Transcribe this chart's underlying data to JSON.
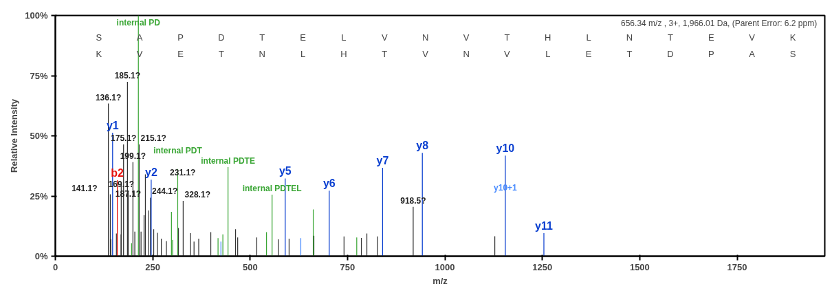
{
  "chart_data": {
    "type": "bar",
    "xlabel": "m/z",
    "ylabel": "Relative Intensity",
    "xlim": [
      0,
      1975
    ],
    "xticks": [
      0,
      250,
      500,
      750,
      1000,
      1250,
      1500,
      1750
    ],
    "ylim": [
      0,
      100
    ],
    "yticks": [
      {
        "value": 0,
        "label": "0%"
      },
      {
        "value": 25,
        "label": "25%"
      },
      {
        "value": 50,
        "label": "50%"
      },
      {
        "value": 75,
        "label": "75%"
      },
      {
        "value": 100,
        "label": "100%"
      }
    ],
    "grid": false,
    "annotations": [
      "656.34 m/z , 3+, 1,966.01 Da,  (Parent Error: 6.2 ppm)",
      "S A P D T E L V N V T H L N T E V K",
      "K V E T N L H T V N V L E T D P A S",
      {
        "text": "y10+1",
        "x": 1155,
        "y": 26
      },
      {
        "text": "136.1?",
        "x": 136.1,
        "y": 63.4
      },
      {
        "text": "141.1?",
        "x": 141.1,
        "y": 25.7
      },
      {
        "text": "169.1?",
        "x": 169.1,
        "y": 30
      },
      {
        "text": "175.1?",
        "x": 175.1,
        "y": 46.4
      },
      {
        "text": "185.1?",
        "x": 185.1,
        "y": 72.4
      },
      {
        "text": "187.1?",
        "x": 187.1,
        "y": 26.6
      },
      {
        "text": "199.1?",
        "x": 199.1,
        "y": 39.1
      },
      {
        "text": "215.1?",
        "x": 215.1,
        "y": 46.4
      },
      {
        "text": "231.1?",
        "x": 231.1,
        "y": 34
      },
      {
        "text": "244.1?",
        "x": 244.1,
        "y": 24.3
      },
      {
        "text": "328.1?",
        "x": 328.1,
        "y": 23
      },
      {
        "text": "918.5?",
        "x": 918.5,
        "y": 20.5
      }
    ],
    "series": [
      {
        "color": "#333333",
        "x": [
          136.1,
          141.1,
          142.5,
          156.7,
          168.6,
          169.1,
          174.4,
          175.1,
          185.1,
          187.1,
          199.1,
          204,
          215.1,
          220,
          227.7,
          231.1,
          239.5,
          244.1,
          252.5,
          262,
          272,
          285,
          316,
          328.1,
          347,
          356,
          368,
          399,
          462.5,
          468,
          517,
          572.5,
          600,
          663.6,
          741,
          785.5,
          799.6,
          827,
          918.5,
          1128
        ],
        "values": [
          63.4,
          25.7,
          7.1,
          9.4,
          9.1,
          30,
          null,
          46.4,
          72.4,
          26.6,
          39.1,
          10.2,
          46.4,
          10.2,
          17,
          34,
          19,
          24.3,
          11.2,
          9.7,
          7.3,
          6.3,
          11.7,
          23,
          9.6,
          6.1,
          7.3,
          10,
          11.2,
          7.8,
          7.8,
          7,
          7.3,
          8.5,
          8.2,
          7.6,
          9.4,
          8.2,
          20.5,
          8.3
        ]
      },
      {
        "color": "#0a3fd0",
        "x": [
          147,
          246,
          590,
          703,
          840,
          942,
          1155,
          1254
        ],
        "values": [
          51.3,
          31.8,
          32.3,
          27.2,
          36.7,
          42.9,
          41.8,
          9.6
        ],
        "value_labels": [
          "y1",
          "y2",
          "y5",
          "y6",
          "y7",
          "y8",
          "y10",
          "y11"
        ]
      },
      {
        "color": "#e8120c",
        "x": [
          159
        ],
        "values": [
          31.6
        ],
        "value_labels": [
          "b2"
        ]
      },
      {
        "color": "#3aa635",
        "x": [
          195.7,
          213.1,
          298,
          301,
          314.1,
          417.6,
          430,
          443.2,
          542,
          556.3,
          662,
          773.6
        ],
        "values": [
          5.4,
          100,
          18.4,
          6.8,
          36.2,
          7.5,
          9.1,
          37,
          10,
          25.6,
          19.4,
          7.8
        ],
        "value_labels": [
          null,
          "internal PD",
          null,
          null,
          "internal PDT",
          null,
          null,
          "internal PDTE",
          null,
          "internal PDTEL",
          null,
          null
        ]
      },
      {
        "color": "#4a8cff",
        "x": [
          425,
          630
        ],
        "values": [
          6.1,
          7.5
        ]
      }
    ]
  }
}
